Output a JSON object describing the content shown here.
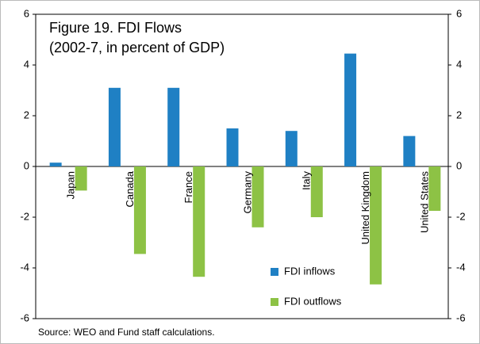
{
  "chart_data": {
    "type": "bar",
    "title": "Figure 19. FDI Flows",
    "subtitle": "(2002-7, in percent of GDP)",
    "source": "Source: WEO and Fund staff calculations.",
    "categories": [
      "Japan",
      "Canada",
      "France",
      "Germany",
      "Italy",
      "United Kingdom",
      "United States"
    ],
    "series": [
      {
        "name": "FDI inflows",
        "color": "#1f80c4",
        "values": [
          0.15,
          3.1,
          3.1,
          1.5,
          1.4,
          4.45,
          1.2
        ]
      },
      {
        "name": "FDI outflows",
        "color": "#8dc245",
        "values": [
          -0.95,
          -3.45,
          -4.35,
          -2.4,
          -2.0,
          -4.65,
          -1.75
        ]
      }
    ],
    "ylim": [
      -6,
      6
    ],
    "yticks": [
      -6,
      -4,
      -2,
      0,
      2,
      4,
      6
    ],
    "y2lim": [
      -6,
      6
    ],
    "y2ticks": [
      -6,
      -4,
      -2,
      0,
      2,
      4,
      6
    ],
    "grid": false,
    "legend": "lower right"
  }
}
